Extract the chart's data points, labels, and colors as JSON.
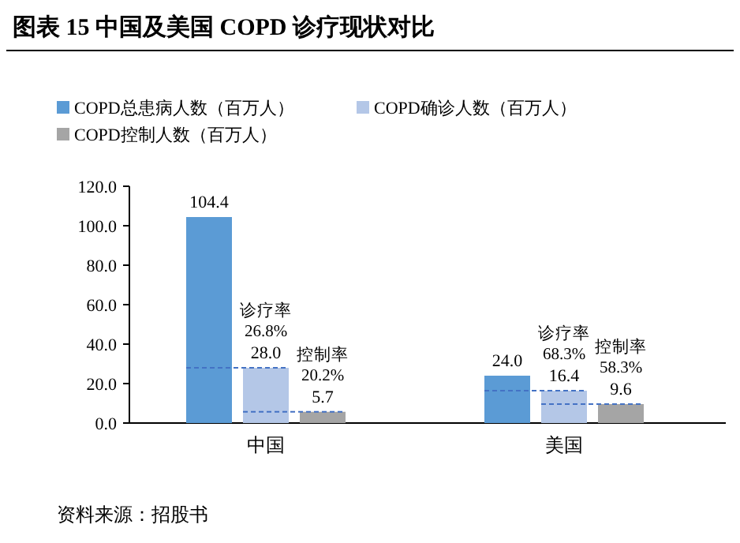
{
  "chart_data": {
    "type": "bar",
    "title": "图表 15 中国及美国 COPD 诊疗现状对比",
    "categories": [
      "中国",
      "美国"
    ],
    "series": [
      {
        "name": "COPD总患病人数（百万人）",
        "color": "#5b9bd5",
        "values": [
          104.4,
          24.0
        ],
        "value_labels": [
          "104.4",
          "24.0"
        ]
      },
      {
        "name": "COPD确诊人数（百万人）",
        "color": "#b4c7e7",
        "values": [
          28.0,
          16.4
        ],
        "value_labels": [
          "28.0",
          "16.4"
        ]
      },
      {
        "name": "COPD控制人数（百万人）",
        "color": "#a5a5a5",
        "values": [
          5.7,
          9.6
        ],
        "value_labels": [
          "5.7",
          "9.6"
        ]
      }
    ],
    "ylim": [
      0,
      120
    ],
    "yticks": [
      {
        "value": 0,
        "label": "0.0"
      },
      {
        "value": 20,
        "label": "20.0"
      },
      {
        "value": 40,
        "label": "40.0"
      },
      {
        "value": 60,
        "label": "60.0"
      },
      {
        "value": 80,
        "label": "80.0"
      },
      {
        "value": 100,
        "label": "100.0"
      },
      {
        "value": 120,
        "label": "120.0"
      }
    ],
    "annotations": [
      {
        "text": "诊疗率\n26.8%",
        "x": "中国",
        "y": 28.0
      },
      {
        "text": "控制率\n20.2%",
        "y": 5.7
      },
      {
        "text": "诊疗率\n68.3%",
        "x": "美国",
        "y": 16.4
      },
      {
        "text": "控制率\n58.3%",
        "y": 9.6
      },
      "资料来源：招股书"
    ],
    "legend": "top left",
    "grid": false
  }
}
